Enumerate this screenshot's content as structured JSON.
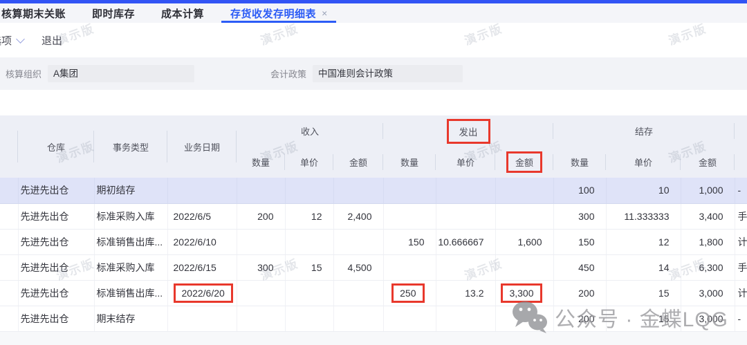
{
  "tabs": [
    {
      "label": "核算期末关账",
      "active": false,
      "closable": false
    },
    {
      "label": "即时库存",
      "active": false,
      "closable": false
    },
    {
      "label": "成本计算",
      "active": false,
      "closable": false
    },
    {
      "label": "存货收发存明细表",
      "active": true,
      "closable": true,
      "close_icon": "×"
    }
  ],
  "toolbar": {
    "options_label": "选项",
    "exit_label": "退出"
  },
  "filters": [
    {
      "key": "org",
      "label": "核算组织",
      "value": "A集团"
    },
    {
      "key": "policy",
      "label": "会计政策",
      "value": "中国准则会计政策"
    }
  ],
  "table": {
    "base_columns": [
      {
        "key": "sel",
        "label": ""
      },
      {
        "key": "warehouse",
        "label": "仓库"
      },
      {
        "key": "type",
        "label": "事务类型"
      },
      {
        "key": "date",
        "label": "业务日期"
      }
    ],
    "groups": [
      {
        "key": "in",
        "label": "收入"
      },
      {
        "key": "out",
        "label": "发出"
      },
      {
        "key": "bal",
        "label": "结存"
      }
    ],
    "sub_labels": {
      "qty": "数量",
      "price": "单价",
      "amt": "金额"
    },
    "rows": [
      {
        "selected": true,
        "warehouse": "先进先出仓",
        "type": "期初结存",
        "date": "",
        "in_qty": "",
        "in_price": "",
        "in_amt": "",
        "out_qty": "",
        "out_price": "",
        "out_amt": "",
        "bal_qty": "100",
        "bal_price": "10",
        "bal_amt": "1,000",
        "tail": "-"
      },
      {
        "selected": false,
        "warehouse": "先进先出仓",
        "type": "标准采购入库",
        "date": "2022/6/5",
        "in_qty": "200",
        "in_price": "12",
        "in_amt": "2,400",
        "out_qty": "",
        "out_price": "",
        "out_amt": "",
        "bal_qty": "300",
        "bal_price": "11.333333",
        "bal_amt": "3,400",
        "tail": "手"
      },
      {
        "selected": false,
        "warehouse": "先进先出仓",
        "type": "标准销售出库...",
        "date": "2022/6/10",
        "in_qty": "",
        "in_price": "",
        "in_amt": "",
        "out_qty": "150",
        "out_price": "10.666667",
        "out_amt": "1,600",
        "bal_qty": "150",
        "bal_price": "12",
        "bal_amt": "1,800",
        "tail": "计"
      },
      {
        "selected": false,
        "warehouse": "先进先出仓",
        "type": "标准采购入库",
        "date": "2022/6/15",
        "in_qty": "300",
        "in_price": "15",
        "in_amt": "4,500",
        "out_qty": "",
        "out_price": "",
        "out_amt": "",
        "bal_qty": "450",
        "bal_price": "14",
        "bal_amt": "6,300",
        "tail": "手"
      },
      {
        "selected": false,
        "warehouse": "先进先出仓",
        "type": "标准销售出库...",
        "date": "2022/6/20",
        "in_qty": "",
        "in_price": "",
        "in_amt": "",
        "out_qty": "250",
        "out_price": "13.2",
        "out_amt": "3,300",
        "bal_qty": "200",
        "bal_price": "15",
        "bal_amt": "3,000",
        "tail": "计"
      },
      {
        "selected": false,
        "warehouse": "先进先出仓",
        "type": "期末结存",
        "date": "",
        "in_qty": "",
        "in_price": "",
        "in_amt": "",
        "out_qty": "",
        "out_price": "",
        "out_amt": "",
        "bal_qty": "200",
        "bal_price": "15",
        "bal_amt": "3,000",
        "tail": "-"
      }
    ]
  },
  "highlights": {
    "header_group": "out",
    "header_cell": "out_amt",
    "cells": [
      {
        "row": 4,
        "col": "date"
      },
      {
        "row": 4,
        "col": "out_qty"
      },
      {
        "row": 4,
        "col": "out_amt"
      }
    ],
    "color": "#e8382c"
  },
  "watermarks": {
    "demo_text": "演示版",
    "brand_text": "公众号 · 金蝶LQG"
  }
}
